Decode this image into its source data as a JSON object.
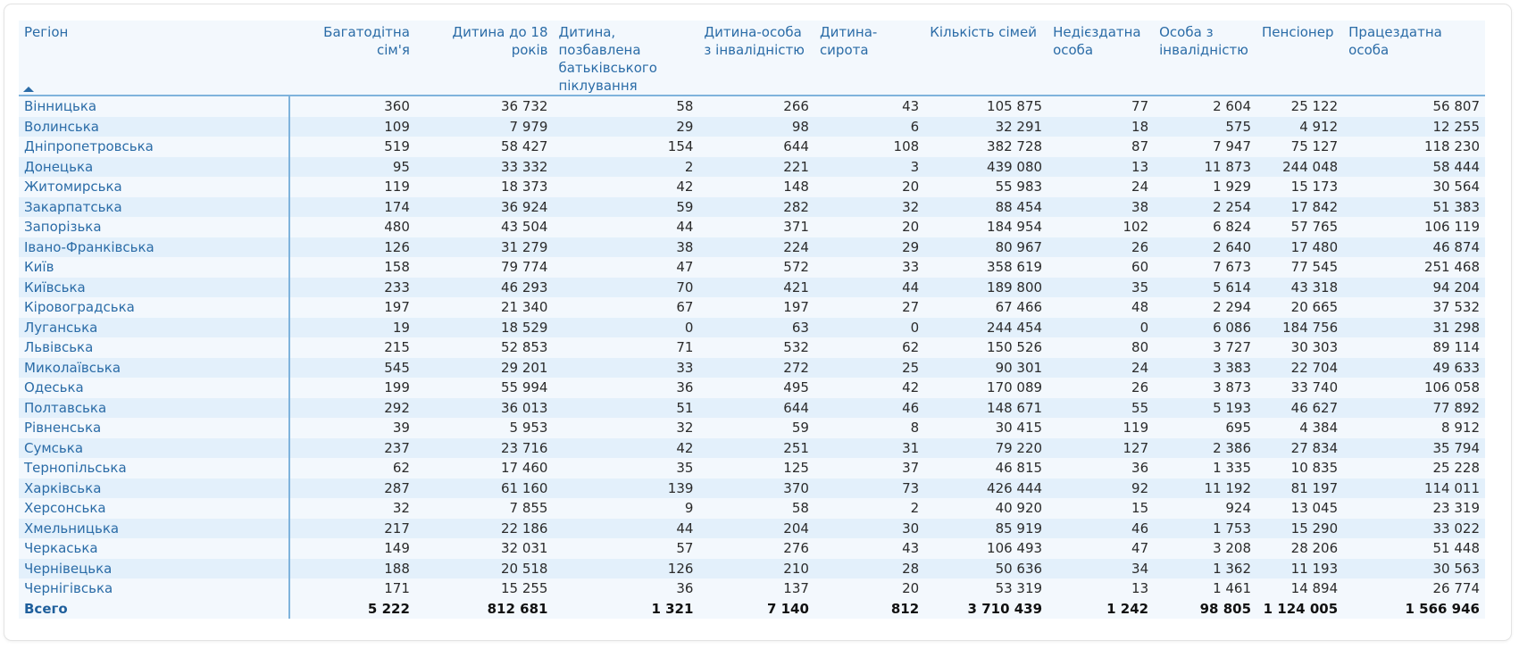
{
  "table": {
    "columns": [
      "Регіон",
      "Багатодітна сім'я",
      "Дитина до 18 років",
      "Дитина, позбавлена батьківського піклування",
      "Дитина-особа з інвалідністю",
      "Дитина-сирота",
      "Кількість сімей",
      "Недієздатна особа",
      "Особа з інвалідністю",
      "Пенсіонер",
      "Працездатна особа"
    ],
    "sort": {
      "column": "Регіон",
      "direction": "ascending"
    },
    "rows": [
      [
        "Вінницька",
        "360",
        "36 732",
        "58",
        "266",
        "43",
        "105 875",
        "77",
        "2 604",
        "25 122",
        "56 807"
      ],
      [
        "Волинська",
        "109",
        "7 979",
        "29",
        "98",
        "6",
        "32 291",
        "18",
        "575",
        "4 912",
        "12 255"
      ],
      [
        "Дніпропетровська",
        "519",
        "58 427",
        "154",
        "644",
        "108",
        "382 728",
        "87",
        "7 947",
        "75 127",
        "118 230"
      ],
      [
        "Донецька",
        "95",
        "33 332",
        "2",
        "221",
        "3",
        "439 080",
        "13",
        "11 873",
        "244 048",
        "58 444"
      ],
      [
        "Житомирська",
        "119",
        "18 373",
        "42",
        "148",
        "20",
        "55 983",
        "24",
        "1 929",
        "15 173",
        "30 564"
      ],
      [
        "Закарпатська",
        "174",
        "36 924",
        "59",
        "282",
        "32",
        "88 454",
        "38",
        "2 254",
        "17 842",
        "51 383"
      ],
      [
        "Запорізька",
        "480",
        "43 504",
        "44",
        "371",
        "20",
        "184 954",
        "102",
        "6 824",
        "57 765",
        "106 119"
      ],
      [
        "Івано-Франківська",
        "126",
        "31 279",
        "38",
        "224",
        "29",
        "80 967",
        "26",
        "2 640",
        "17 480",
        "46 874"
      ],
      [
        "Київ",
        "158",
        "79 774",
        "47",
        "572",
        "33",
        "358 619",
        "60",
        "7 673",
        "77 545",
        "251 468"
      ],
      [
        "Київська",
        "233",
        "46 293",
        "70",
        "421",
        "44",
        "189 800",
        "35",
        "5 614",
        "43 318",
        "94 204"
      ],
      [
        "Кіровоградська",
        "197",
        "21 340",
        "67",
        "197",
        "27",
        "67 466",
        "48",
        "2 294",
        "20 665",
        "37 532"
      ],
      [
        "Луганська",
        "19",
        "18 529",
        "0",
        "63",
        "0",
        "244 454",
        "0",
        "6 086",
        "184 756",
        "31 298"
      ],
      [
        "Львівська",
        "215",
        "52 853",
        "71",
        "532",
        "62",
        "150 526",
        "80",
        "3 727",
        "30 303",
        "89 114"
      ],
      [
        "Миколаївська",
        "545",
        "29 201",
        "33",
        "272",
        "25",
        "90 301",
        "24",
        "3 383",
        "22 704",
        "49 633"
      ],
      [
        "Одеська",
        "199",
        "55 994",
        "36",
        "495",
        "42",
        "170 089",
        "26",
        "3 873",
        "33 740",
        "106 058"
      ],
      [
        "Полтавська",
        "292",
        "36 013",
        "51",
        "644",
        "46",
        "148 671",
        "55",
        "5 193",
        "46 627",
        "77 892"
      ],
      [
        "Рівненська",
        "39",
        "5 953",
        "32",
        "59",
        "8",
        "30 415",
        "119",
        "695",
        "4 384",
        "8 912"
      ],
      [
        "Сумська",
        "237",
        "23 716",
        "42",
        "251",
        "31",
        "79 220",
        "127",
        "2 386",
        "27 834",
        "35 794"
      ],
      [
        "Тернопільська",
        "62",
        "17 460",
        "35",
        "125",
        "37",
        "46 815",
        "36",
        "1 335",
        "10 835",
        "25 228"
      ],
      [
        "Харківська",
        "287",
        "61 160",
        "139",
        "370",
        "73",
        "426 444",
        "92",
        "11 192",
        "81 197",
        "114 011"
      ],
      [
        "Херсонська",
        "32",
        "7 855",
        "9",
        "58",
        "2",
        "40 920",
        "15",
        "924",
        "13 045",
        "23 319"
      ],
      [
        "Хмельницька",
        "217",
        "22 186",
        "44",
        "204",
        "30",
        "85 919",
        "46",
        "1 753",
        "15 290",
        "33 022"
      ],
      [
        "Черкаська",
        "149",
        "32 031",
        "57",
        "276",
        "43",
        "106 493",
        "47",
        "3 208",
        "28 206",
        "51 448"
      ],
      [
        "Чернівецька",
        "188",
        "20 518",
        "126",
        "210",
        "28",
        "50 636",
        "34",
        "1 362",
        "11 193",
        "30 563"
      ],
      [
        "Чернігівська",
        "171",
        "15 255",
        "36",
        "137",
        "20",
        "53 319",
        "13",
        "1 461",
        "14 894",
        "26 774"
      ]
    ],
    "total": [
      "Всего",
      "5 222",
      "812 681",
      "1 321",
      "7 140",
      "812",
      "3 710 439",
      "1 242",
      "98 805",
      "1 124 005",
      "1 566 946"
    ]
  },
  "colors": {
    "header_text": "#2b6ca7",
    "row_odd": "#f3f8fd",
    "row_even": "#e3f0fb",
    "divider": "#7fb3dc"
  }
}
